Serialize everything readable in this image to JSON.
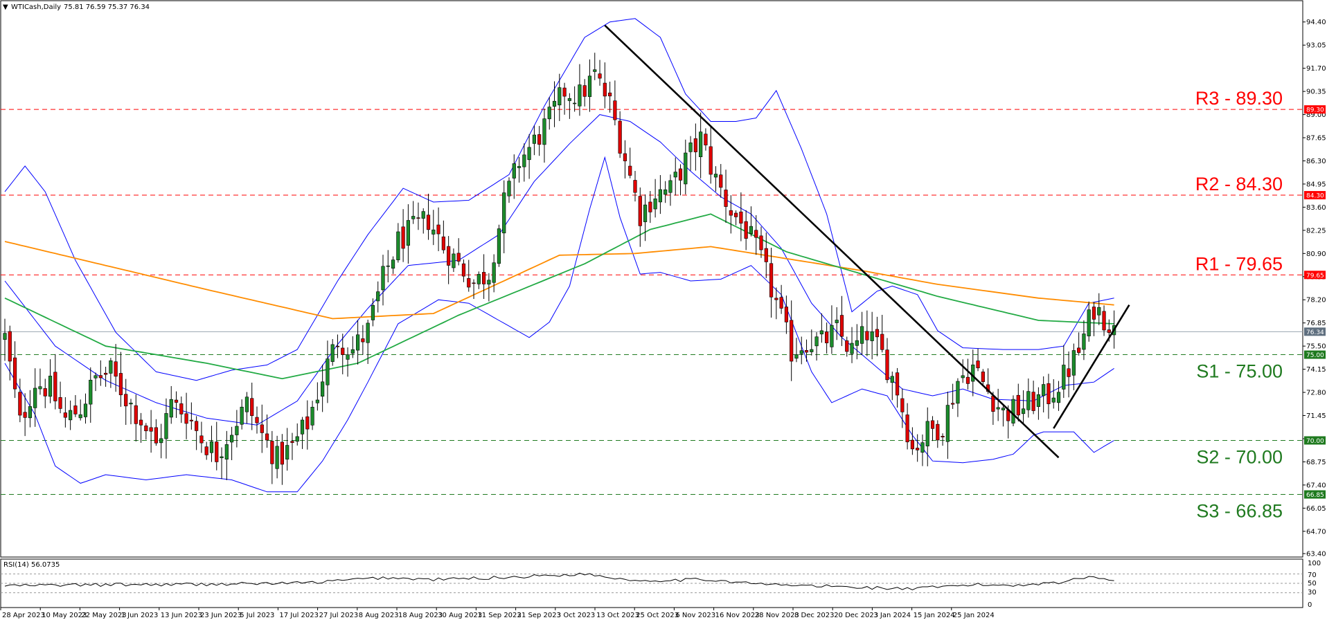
{
  "header": {
    "symbol": "WTICash,Daily",
    "ohlc": "75.81 76.59 75.37 76.34"
  },
  "rsi_panel": {
    "label": "RSI(14) 56.0735",
    "ticks": [
      "100",
      "70",
      "50",
      "30",
      "0"
    ]
  },
  "colors": {
    "resistance": "#ff0000",
    "support": "#1f7a1f",
    "bull_candle": "#1c8c2c",
    "bear_candle": "#e00000",
    "bollinger": "#0000ff",
    "ma_green": "#22aa44",
    "ma_orange": "#ff8c00",
    "trendline": "#000000",
    "price_tag": "#5f6f7f"
  },
  "current_price": "76.34",
  "chart_data": {
    "type": "candlestick",
    "title": "WTICash,Daily",
    "ylim": [
      63.2,
      95.6
    ],
    "y_ticks": [
      "94.40",
      "93.05",
      "91.70",
      "90.35",
      "89.00",
      "87.65",
      "86.30",
      "84.95",
      "83.60",
      "82.25",
      "80.90",
      "79.55",
      "78.20",
      "76.85",
      "75.50",
      "74.15",
      "72.80",
      "71.45",
      "70.10",
      "68.75",
      "67.40",
      "66.05",
      "64.70",
      "63.40"
    ],
    "x_tick_labels": [
      "28 Apr 2023",
      "10 May 2023",
      "22 May 2023",
      "1 Jun 2023",
      "13 Jun 2023",
      "23 Jun 2023",
      "5 Jul 2023",
      "17 Jul 2023",
      "27 Jul 2023",
      "8 Aug 2023",
      "18 Aug 2023",
      "30 Aug 2023",
      "11 Sep 2023",
      "21 Sep 2023",
      "3 Oct 2023",
      "13 Oct 2023",
      "25 Oct 2023",
      "6 Nov 2023",
      "16 Nov 2023",
      "28 Nov 2023",
      "8 Dec 2023",
      "20 Dec 2023",
      "3 Jan 2024",
      "15 Jan 2024",
      "25 Jan 2024"
    ],
    "levels": [
      {
        "name": "R3",
        "label": "R3 - 89.30",
        "value": 89.3,
        "tag": "89.30",
        "kind": "resistance"
      },
      {
        "name": "R2",
        "label": "R2 - 84.30",
        "value": 84.3,
        "tag": "84.30",
        "kind": "resistance"
      },
      {
        "name": "R1",
        "label": "R1 - 79.65",
        "value": 79.65,
        "tag": "79.65",
        "kind": "resistance"
      },
      {
        "name": "S1",
        "label": "S1 - 75.00",
        "value": 75.0,
        "tag": "75.00",
        "kind": "support"
      },
      {
        "name": "S2",
        "label": "S2 - 70.00",
        "value": 70.0,
        "tag": "70.00",
        "kind": "support"
      },
      {
        "name": "S3",
        "label": "S3 - 66.85",
        "value": 66.85,
        "tag": "66.85",
        "kind": "support"
      }
    ],
    "close_anchors": [
      [
        0,
        76.0
      ],
      [
        3,
        71.0
      ],
      [
        6,
        73.4
      ],
      [
        9,
        73.0
      ],
      [
        12,
        71.2
      ],
      [
        15,
        71.9
      ],
      [
        18,
        73.6
      ],
      [
        21,
        74.0
      ],
      [
        24,
        72.5
      ],
      [
        27,
        71.2
      ],
      [
        30,
        69.7
      ],
      [
        33,
        72.1
      ],
      [
        36,
        71.6
      ],
      [
        39,
        70.1
      ],
      [
        42,
        69.2
      ],
      [
        45,
        70.7
      ],
      [
        48,
        72.1
      ],
      [
        51,
        70.3
      ],
      [
        54,
        68.9
      ],
      [
        57,
        69.6
      ],
      [
        60,
        71.0
      ],
      [
        63,
        73.7
      ],
      [
        66,
        75.9
      ],
      [
        69,
        75.3
      ],
      [
        72,
        76.4
      ],
      [
        75,
        79.4
      ],
      [
        78,
        81.6
      ],
      [
        81,
        82.3
      ],
      [
        84,
        82.9
      ],
      [
        87,
        81.3
      ],
      [
        90,
        80.3
      ],
      [
        93,
        79.2
      ],
      [
        96,
        79.8
      ],
      [
        99,
        83.8
      ],
      [
        102,
        86.3
      ],
      [
        105,
        87.4
      ],
      [
        108,
        88.7
      ],
      [
        111,
        90.4
      ],
      [
        114,
        90.1
      ],
      [
        117,
        91.3
      ],
      [
        120,
        89.6
      ],
      [
        123,
        86.5
      ],
      [
        126,
        83.2
      ],
      [
        129,
        84.4
      ],
      [
        132,
        84.6
      ],
      [
        135,
        86.3
      ],
      [
        138,
        87.6
      ],
      [
        141,
        85.2
      ],
      [
        144,
        83.4
      ],
      [
        147,
        82.3
      ],
      [
        150,
        80.5
      ],
      [
        153,
        78.0
      ],
      [
        156,
        75.2
      ],
      [
        159,
        75.8
      ],
      [
        162,
        75.7
      ],
      [
        165,
        76.4
      ],
      [
        168,
        75.2
      ],
      [
        171,
        76.3
      ],
      [
        174,
        75.0
      ],
      [
        177,
        73.0
      ],
      [
        180,
        69.5
      ],
      [
        183,
        70.5
      ],
      [
        186,
        70.9
      ],
      [
        189,
        73.5
      ],
      [
        192,
        74.3
      ],
      [
        195,
        72.9
      ],
      [
        198,
        71.6
      ],
      [
        201,
        71.8
      ],
      [
        204,
        72.3
      ],
      [
        207,
        72.6
      ],
      [
        210,
        73.7
      ],
      [
        213,
        75.2
      ],
      [
        216,
        77.8
      ],
      [
        219,
        76.9
      ],
      [
        220,
        76.3
      ]
    ],
    "ma_orange": [
      [
        0,
        81.6
      ],
      [
        40,
        78.8
      ],
      [
        65,
        77.1
      ],
      [
        85,
        77.4
      ],
      [
        110,
        80.8
      ],
      [
        125,
        80.9
      ],
      [
        140,
        81.3
      ],
      [
        155,
        80.6
      ],
      [
        170,
        79.9
      ],
      [
        185,
        79.1
      ],
      [
        205,
        78.3
      ],
      [
        220,
        77.9
      ]
    ],
    "ma_green": [
      [
        0,
        78.3
      ],
      [
        20,
        75.5
      ],
      [
        40,
        74.5
      ],
      [
        55,
        73.6
      ],
      [
        70,
        74.5
      ],
      [
        90,
        77.3
      ],
      [
        115,
        80.3
      ],
      [
        128,
        82.3
      ],
      [
        140,
        83.2
      ],
      [
        155,
        81.0
      ],
      [
        170,
        79.7
      ],
      [
        185,
        78.4
      ],
      [
        205,
        77.0
      ],
      [
        220,
        76.8
      ]
    ],
    "bb_upper": [
      [
        0,
        84.5
      ],
      [
        4,
        86.0
      ],
      [
        8,
        84.5
      ],
      [
        14,
        80.5
      ],
      [
        22,
        76.3
      ],
      [
        30,
        74.0
      ],
      [
        38,
        73.5
      ],
      [
        45,
        74.1
      ],
      [
        52,
        74.4
      ],
      [
        58,
        75.3
      ],
      [
        66,
        79.3
      ],
      [
        72,
        82.0
      ],
      [
        79,
        84.7
      ],
      [
        85,
        83.9
      ],
      [
        92,
        84.0
      ],
      [
        100,
        85.5
      ],
      [
        107,
        89.5
      ],
      [
        115,
        93.5
      ],
      [
        120,
        94.4
      ],
      [
        125,
        94.6
      ],
      [
        130,
        93.5
      ],
      [
        135,
        90.2
      ],
      [
        140,
        88.6
      ],
      [
        145,
        88.6
      ],
      [
        149,
        88.8
      ],
      [
        153,
        90.4
      ],
      [
        158,
        87.0
      ],
      [
        163,
        83.2
      ],
      [
        168,
        77.5
      ],
      [
        173,
        78.7
      ],
      [
        176,
        79.0
      ],
      [
        181,
        78.5
      ],
      [
        185,
        76.4
      ],
      [
        190,
        75.4
      ],
      [
        198,
        75.3
      ],
      [
        205,
        75.3
      ],
      [
        210,
        75.5
      ],
      [
        215,
        78.0
      ],
      [
        220,
        78.3
      ]
    ],
    "bb_mid": [
      [
        0,
        79.3
      ],
      [
        10,
        75.5
      ],
      [
        20,
        73.5
      ],
      [
        30,
        72.2
      ],
      [
        40,
        71.3
      ],
      [
        50,
        70.9
      ],
      [
        58,
        72.3
      ],
      [
        66,
        75.6
      ],
      [
        72,
        77.7
      ],
      [
        80,
        80.2
      ],
      [
        90,
        80.5
      ],
      [
        98,
        82.0
      ],
      [
        105,
        85.1
      ],
      [
        112,
        87.3
      ],
      [
        118,
        89.0
      ],
      [
        124,
        88.6
      ],
      [
        130,
        87.4
      ],
      [
        136,
        85.7
      ],
      [
        142,
        84.2
      ],
      [
        148,
        83.2
      ],
      [
        154,
        81.2
      ],
      [
        160,
        78.0
      ],
      [
        166,
        76.0
      ],
      [
        172,
        74.5
      ],
      [
        178,
        73.0
      ],
      [
        184,
        72.6
      ],
      [
        190,
        73.0
      ],
      [
        196,
        72.4
      ],
      [
        204,
        72.3
      ],
      [
        210,
        73.2
      ],
      [
        216,
        73.4
      ],
      [
        220,
        74.2
      ]
    ],
    "bb_lower": [
      [
        0,
        74.5
      ],
      [
        6,
        71.5
      ],
      [
        10,
        68.5
      ],
      [
        15,
        67.5
      ],
      [
        20,
        68.0
      ],
      [
        28,
        67.7
      ],
      [
        36,
        68.0
      ],
      [
        45,
        67.7
      ],
      [
        52,
        67.0
      ],
      [
        58,
        67.0
      ],
      [
        63,
        68.8
      ],
      [
        68,
        71.2
      ],
      [
        72,
        73.4
      ],
      [
        78,
        76.8
      ],
      [
        86,
        78.2
      ],
      [
        92,
        78.0
      ],
      [
        98,
        77.0
      ],
      [
        104,
        76.0
      ],
      [
        108,
        76.9
      ],
      [
        112,
        79.0
      ],
      [
        116,
        83.5
      ],
      [
        119,
        86.5
      ],
      [
        122,
        83.0
      ],
      [
        126,
        79.7
      ],
      [
        130,
        79.8
      ],
      [
        136,
        79.3
      ],
      [
        142,
        79.4
      ],
      [
        148,
        80.2
      ],
      [
        154,
        78.5
      ],
      [
        160,
        74.0
      ],
      [
        164,
        72.2
      ],
      [
        170,
        73.0
      ],
      [
        175,
        72.6
      ],
      [
        180,
        70.3
      ],
      [
        184,
        68.8
      ],
      [
        190,
        68.7
      ],
      [
        196,
        68.9
      ],
      [
        200,
        69.2
      ],
      [
        204,
        70.3
      ],
      [
        206,
        70.5
      ],
      [
        212,
        70.5
      ],
      [
        216,
        69.3
      ],
      [
        220,
        70.0
      ]
    ],
    "trendlines": [
      {
        "name": "downtrend",
        "from": [
          119,
          94.2
        ],
        "to": [
          209,
          69.0
        ]
      },
      {
        "name": "uptrend",
        "from": [
          208,
          70.7
        ],
        "to": [
          223,
          77.9
        ]
      }
    ],
    "rsi": {
      "ylim": [
        0,
        100
      ],
      "levels": [
        70,
        50,
        30
      ],
      "anchors": [
        [
          0,
          45
        ],
        [
          20,
          47
        ],
        [
          40,
          48
        ],
        [
          60,
          51
        ],
        [
          75,
          62
        ],
        [
          85,
          58
        ],
        [
          100,
          63
        ],
        [
          115,
          70
        ],
        [
          125,
          56
        ],
        [
          140,
          58
        ],
        [
          150,
          48
        ],
        [
          165,
          43
        ],
        [
          180,
          38
        ],
        [
          192,
          47
        ],
        [
          200,
          46
        ],
        [
          210,
          53
        ],
        [
          216,
          66
        ],
        [
          220,
          56
        ]
      ]
    },
    "grid": false,
    "legend": "none"
  }
}
